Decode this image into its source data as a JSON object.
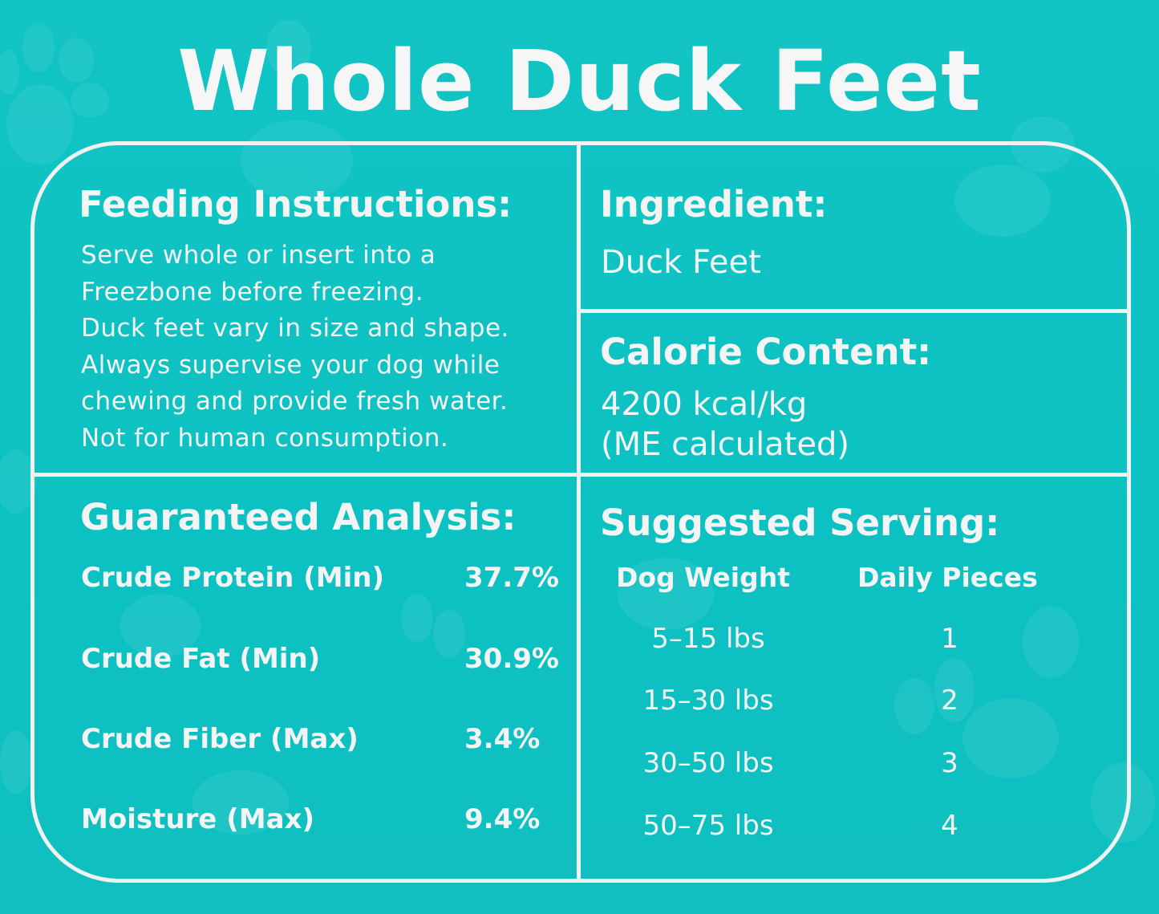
{
  "title": "Whole Duck Feet",
  "colors": {
    "background": "#0fc3c3",
    "text": "#f4f4f4",
    "border": "#f1f1f1"
  },
  "feeding": {
    "heading": "Feeding Instructions:",
    "lines": [
      "Serve whole or insert into a",
      "Freezbone before freezing.",
      "Duck feet vary in size and shape.",
      "Always supervise your dog while",
      "chewing and provide fresh water.",
      "Not for human consumption."
    ]
  },
  "ingredient": {
    "heading": "Ingredient:",
    "value": "Duck Feet"
  },
  "calorie": {
    "heading": "Calorie Content:",
    "value": "4200 kcal/kg",
    "note": "(ME calculated)"
  },
  "analysis": {
    "heading": "Guaranteed Analysis:",
    "rows": [
      {
        "label": "Crude Protein (Min)",
        "value": "37.7%"
      },
      {
        "label": "Crude Fat (Min)",
        "value": "30.9%"
      },
      {
        "label": "Crude Fiber (Max)",
        "value": "3.4%"
      },
      {
        "label": "Moisture (Max)",
        "value": "9.4%"
      }
    ]
  },
  "serving": {
    "heading": "Suggested Serving:",
    "columns": [
      "Dog Weight",
      "Daily Pieces"
    ],
    "rows": [
      {
        "weight": "5–15 lbs",
        "pieces": "1"
      },
      {
        "weight": "15–30 lbs",
        "pieces": "2"
      },
      {
        "weight": "30–50 lbs",
        "pieces": "3"
      },
      {
        "weight": "50–75 lbs",
        "pieces": "4"
      }
    ]
  }
}
